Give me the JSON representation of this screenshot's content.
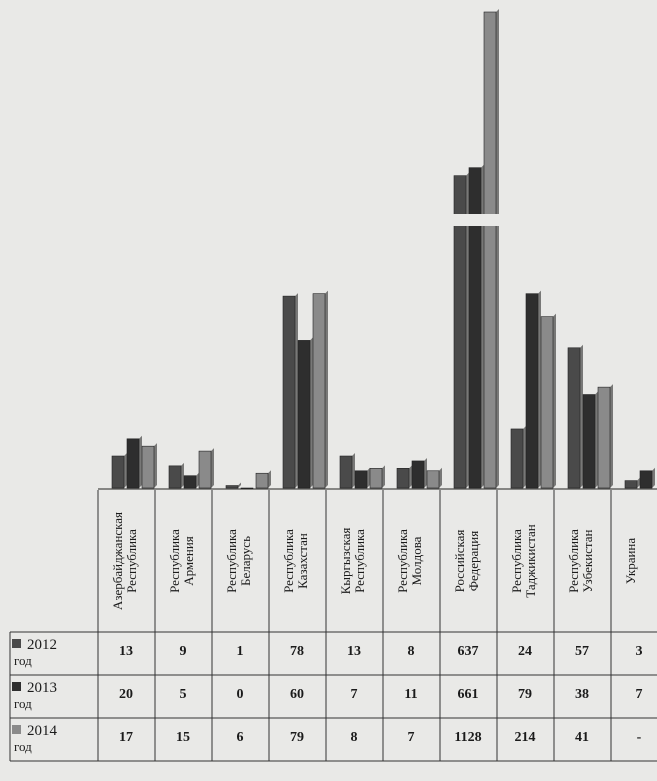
{
  "chart_data": {
    "type": "bar",
    "title": "",
    "xlabel": "",
    "ylabel": "",
    "categories": [
      "Азербайджанская\nРеспублика",
      "Республика\nАрмения",
      "Республика\nБеларусь",
      "Республика\nКазахстан",
      "Кыргызская\nРеспублика",
      "Республика\nМолдова",
      "Российская\nФедерация",
      "Республика\nТаджикистан",
      "Республика\nУзбекистан",
      "Украина"
    ],
    "series": [
      {
        "name": "2012",
        "name_suffix": "год",
        "values": [
          13,
          9,
          1,
          78,
          13,
          8,
          637,
          24,
          57,
          3
        ],
        "labels": [
          "13",
          "9",
          "1",
          "78",
          "13",
          "8",
          "637",
          "24",
          "57",
          "3"
        ],
        "color": "#4a4a4a"
      },
      {
        "name": "2013",
        "name_suffix": "год",
        "values": [
          20,
          5,
          0,
          60,
          7,
          11,
          661,
          79,
          38,
          7
        ],
        "labels": [
          "20",
          "5",
          "0",
          "60",
          "7",
          "11",
          "661",
          "79",
          "38",
          "7"
        ],
        "color": "#2e2e2e"
      },
      {
        "name": "2014",
        "name_suffix": "год",
        "values": [
          17,
          15,
          6,
          79,
          8,
          7,
          1128,
          214,
          41,
          null
        ],
        "labels": [
          "17",
          "15",
          "6",
          "79",
          "8",
          "7",
          "1128",
          "214",
          "41",
          "-"
        ],
        "color": "#8a8a8a"
      }
    ],
    "axis_break": true,
    "grid": false,
    "legend": "table-below"
  }
}
